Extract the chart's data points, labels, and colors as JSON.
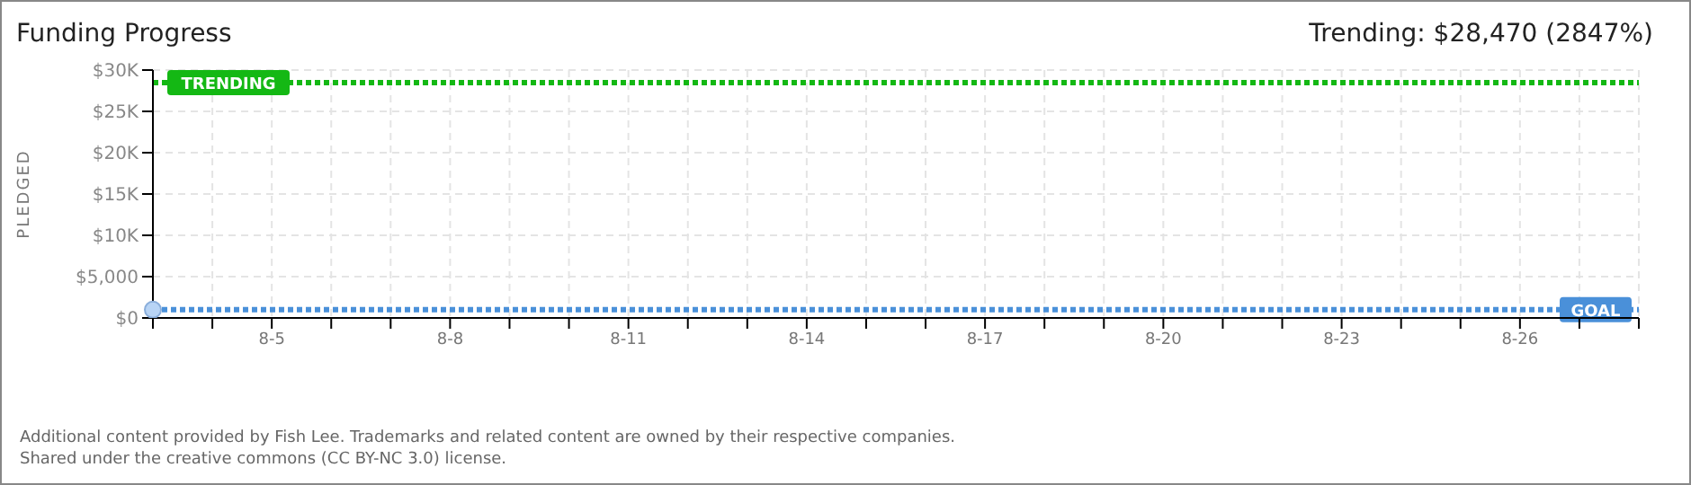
{
  "chart_data": {
    "type": "scatter",
    "title": "Funding Progress",
    "subtitle": "Trending: $28,470 (2847%)",
    "ylabel": "PLEDGED",
    "x": [
      "--08-03"
    ],
    "series": [
      {
        "color": "#b8d4f5",
        "values": [
          1000
        ]
      }
    ],
    "xlim": [
      "--08-03",
      "--08-28"
    ],
    "xticks": [
      {
        "value": "--08-03",
        "label": null
      },
      {
        "value": "--08-04",
        "label": null
      },
      {
        "value": "--08-05",
        "label": "8-5"
      },
      {
        "value": "--08-06",
        "label": null
      },
      {
        "value": "--08-07",
        "label": null
      },
      {
        "value": "--08-08",
        "label": "8-8"
      },
      {
        "value": "--08-09",
        "label": null
      },
      {
        "value": "--08-10",
        "label": null
      },
      {
        "value": "--08-11",
        "label": "8-11"
      },
      {
        "value": "--08-12",
        "label": null
      },
      {
        "value": "--08-13",
        "label": null
      },
      {
        "value": "--08-14",
        "label": "8-14"
      },
      {
        "value": "--08-15",
        "label": null
      },
      {
        "value": "--08-16",
        "label": null
      },
      {
        "value": "--08-17",
        "label": "8-17"
      },
      {
        "value": "--08-18",
        "label": null
      },
      {
        "value": "--08-19",
        "label": null
      },
      {
        "value": "--08-20",
        "label": "8-20"
      },
      {
        "value": "--08-21",
        "label": null
      },
      {
        "value": "--08-22",
        "label": null
      },
      {
        "value": "--08-23",
        "label": "8-23"
      },
      {
        "value": "--08-24",
        "label": null
      },
      {
        "value": "--08-25",
        "label": null
      },
      {
        "value": "--08-26",
        "label": "8-26"
      },
      {
        "value": "--08-27",
        "label": null
      },
      {
        "value": "--08-28",
        "label": null
      }
    ],
    "ylim": [
      0,
      30000
    ],
    "yticks": [
      {
        "value": 0,
        "label": "$0"
      },
      {
        "value": 5000,
        "label": "$5,000"
      },
      {
        "value": 10000,
        "label": "$10K"
      },
      {
        "value": 15000,
        "label": "$15K"
      },
      {
        "value": 20000,
        "label": "$20K"
      },
      {
        "value": 25000,
        "label": "$25K"
      },
      {
        "value": 30000,
        "label": "$30K"
      }
    ],
    "grid": true,
    "marker": "circle",
    "ref_lines": [
      {
        "axis": "y",
        "value": 28470,
        "label": "TRENDING",
        "color": "#14b814",
        "line_style": "dotted"
      },
      {
        "axis": "y",
        "value": 1000,
        "label": "GOAL",
        "color": "#4a90d9",
        "line_style": "dotted"
      }
    ],
    "annotations": [
      "Additional content provided by Fish Lee. Trademarks and related content are owned by their respective companies.",
      "Shared under the creative commons (CC BY-NC 3.0) license."
    ]
  }
}
